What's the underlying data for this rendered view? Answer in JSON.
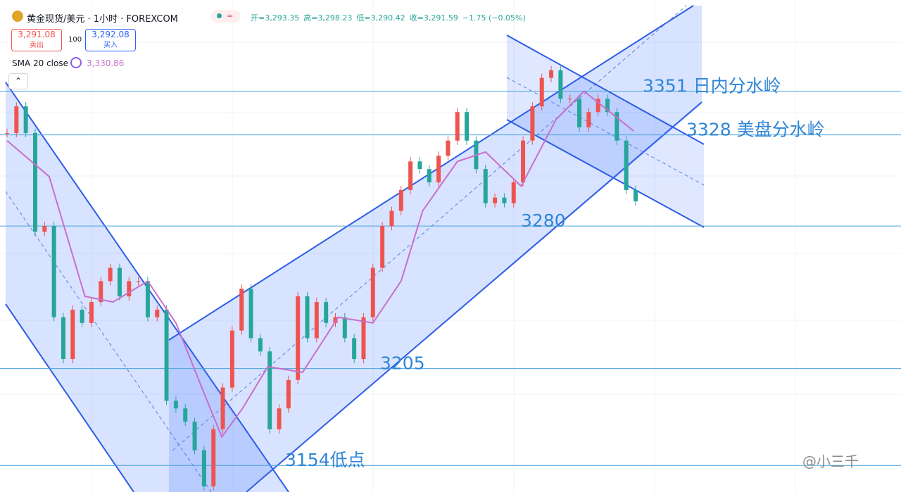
{
  "header": {
    "title": "黄金现货/美元 · 1小时 · FOREXCOM",
    "ohlc": [
      "开=3,293.35",
      "高=3,298.23",
      "低=3,290.42",
      "收=3,291.59",
      "−1.75 (−0.05%)"
    ],
    "sell_price": "3,291.08",
    "sell_label": "卖出",
    "spread": "100",
    "buy_price": "3,292.08",
    "buy_label": "买入",
    "indicator": "SMA 20 close",
    "indicator_value": "3,330.86"
  },
  "watermark": "@小三千",
  "chart_data": {
    "type": "candlestick",
    "closes": [
      3329,
      3343,
      3329,
      3277,
      3280,
      3232,
      3210,
      3236,
      3229,
      3240,
      3251,
      3258,
      3243,
      3251,
      3251,
      3232,
      3236,
      3188,
      3184,
      3177,
      3162,
      3143,
      3173,
      3195,
      3225,
      3247,
      3221,
      3214,
      3173,
      3184,
      3199,
      3243,
      3221,
      3240,
      3229,
      3232,
      3221,
      3210,
      3232,
      3258,
      3280,
      3288,
      3299,
      3314,
      3310,
      3303,
      3317,
      3325,
      3340,
      3325,
      3310,
      3292,
      3295,
      3292,
      3303,
      3325,
      3343,
      3358,
      3362,
      3347,
      3347,
      3332,
      3340,
      3347,
      3340,
      3325,
      3299,
      3293
    ],
    "up_color": "#ef5350",
    "down_color": "#26a69a",
    "sma": {
      "name": "SMA 20 close",
      "color": "#c86fc9",
      "x": [
        0,
        4.5,
        8.3,
        11.3,
        15,
        18,
        21,
        22.9,
        25.1,
        27.8,
        31.5,
        35.3,
        39,
        42,
        44.3,
        48,
        51,
        54.8,
        58.5,
        61.5,
        66.8
      ],
      "values": [
        3325,
        3306,
        3243,
        3240,
        3251,
        3229,
        3192,
        3169,
        3184,
        3206,
        3203,
        3232,
        3229,
        3251,
        3288,
        3314,
        3319,
        3301,
        3336,
        3351,
        3330
      ]
    },
    "ylim": [
      3140,
      3399
    ],
    "levels": [
      {
        "value": 3351,
        "label": "3351 日内分水岭"
      },
      {
        "value": 3328,
        "label": "3328 美盘分水岭"
      },
      3280,
      3205,
      {
        "value": 3154,
        "label": "3154低点"
      }
    ],
    "level_color": "#4aa3df"
  }
}
